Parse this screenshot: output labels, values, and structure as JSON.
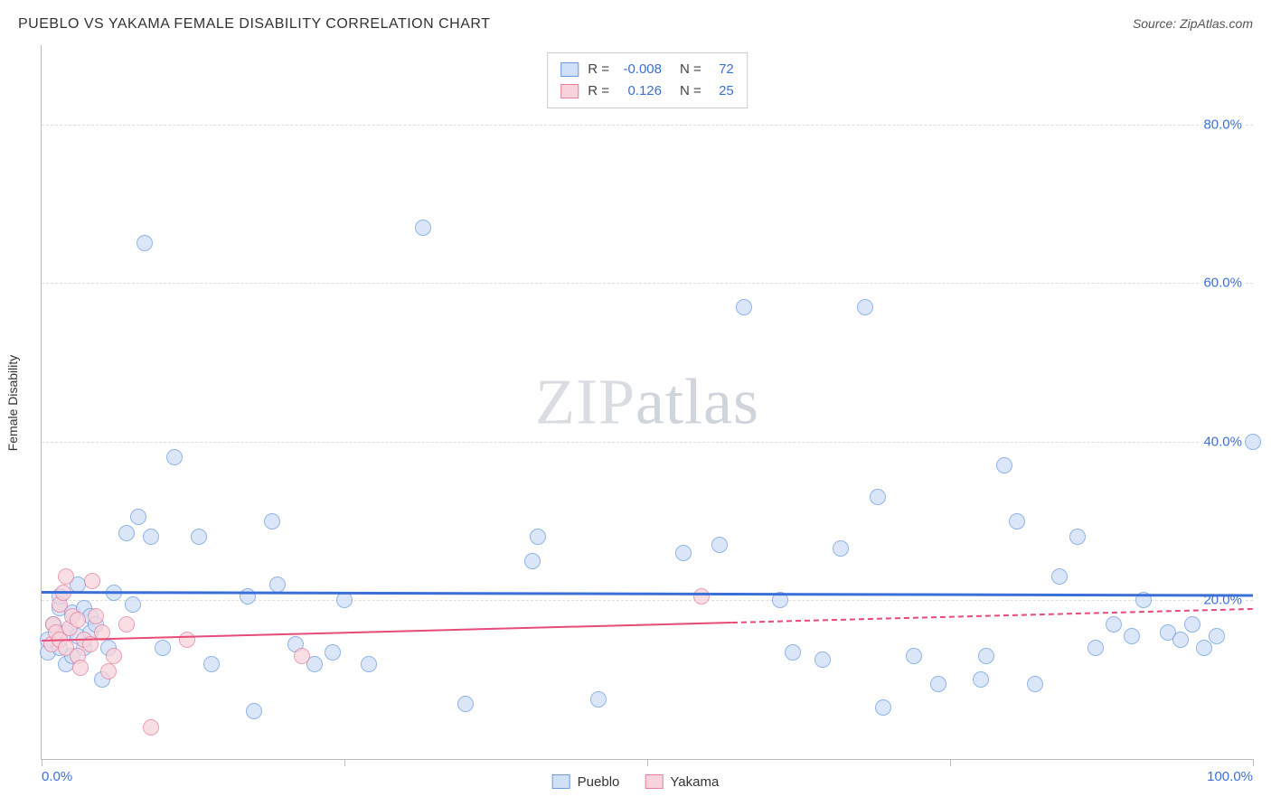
{
  "header": {
    "title": "PUEBLO VS YAKAMA FEMALE DISABILITY CORRELATION CHART",
    "source": "Source: ZipAtlas.com"
  },
  "watermark": {
    "bold": "ZIP",
    "rest": "atlas"
  },
  "chart": {
    "type": "scatter",
    "ylabel": "Female Disability",
    "background_color": "#ffffff",
    "grid_color": "#dddddd",
    "axis_color": "#bbbbbb",
    "tick_label_color": "#3b6fd8",
    "xlim": [
      0,
      100
    ],
    "ylim": [
      0,
      90
    ],
    "ytick_values": [
      20,
      40,
      60,
      80
    ],
    "ytick_labels": [
      "20.0%",
      "40.0%",
      "60.0%",
      "80.0%"
    ],
    "xtick_values": [
      0,
      50,
      100
    ],
    "xtick_minor": [
      25,
      75
    ],
    "xtick_labels": {
      "0": "0.0%",
      "100": "100.0%"
    },
    "marker_radius": 9,
    "marker_border_width": 1.2,
    "series": [
      {
        "name": "Pueblo",
        "fill": "#cfe0f7",
        "stroke": "#6a9be0",
        "fill_opacity": 0.75,
        "R": "-0.008",
        "N": "72",
        "trend": {
          "y_at_x0": 21.2,
          "y_at_x100": 20.8,
          "solid_until_x": 100,
          "color": "#3b6fd8",
          "width": 3
        },
        "points": [
          [
            0.5,
            13.5
          ],
          [
            0.5,
            15.0
          ],
          [
            1.0,
            17.0
          ],
          [
            1.5,
            14.0
          ],
          [
            1.5,
            19.0
          ],
          [
            1.5,
            20.5
          ],
          [
            2.0,
            12.0
          ],
          [
            2.0,
            16.0
          ],
          [
            2.5,
            13.0
          ],
          [
            2.5,
            18.5
          ],
          [
            3.0,
            15.5
          ],
          [
            3.0,
            22.0
          ],
          [
            3.5,
            14.0
          ],
          [
            3.5,
            19.0
          ],
          [
            4.0,
            16.0
          ],
          [
            4.0,
            18.0
          ],
          [
            4.5,
            17.0
          ],
          [
            5.0,
            10.0
          ],
          [
            5.5,
            14.0
          ],
          [
            6.0,
            21.0
          ],
          [
            7.0,
            28.5
          ],
          [
            8.0,
            30.5
          ],
          [
            8.5,
            65.0
          ],
          [
            9.0,
            28.0
          ],
          [
            10.0,
            14.0
          ],
          [
            11.0,
            38.0
          ],
          [
            13.0,
            28.0
          ],
          [
            14.0,
            12.0
          ],
          [
            17.0,
            20.5
          ],
          [
            17.5,
            6.0
          ],
          [
            19.0,
            30.0
          ],
          [
            19.5,
            22.0
          ],
          [
            21.0,
            14.5
          ],
          [
            22.5,
            12.0
          ],
          [
            24.0,
            13.5
          ],
          [
            25.0,
            20.0
          ],
          [
            27.0,
            12.0
          ],
          [
            31.5,
            67.0
          ],
          [
            35.0,
            7.0
          ],
          [
            40.5,
            25.0
          ],
          [
            41.0,
            28.0
          ],
          [
            46.0,
            7.5
          ],
          [
            53.0,
            26.0
          ],
          [
            56.0,
            27.0
          ],
          [
            58.0,
            57.0
          ],
          [
            61.0,
            20.0
          ],
          [
            62.0,
            13.5
          ],
          [
            64.5,
            12.5
          ],
          [
            66.0,
            26.5
          ],
          [
            68.0,
            57.0
          ],
          [
            69.0,
            33.0
          ],
          [
            69.5,
            6.5
          ],
          [
            72.0,
            13.0
          ],
          [
            74.0,
            9.5
          ],
          [
            77.5,
            10.0
          ],
          [
            78.0,
            13.0
          ],
          [
            79.5,
            37.0
          ],
          [
            80.5,
            30.0
          ],
          [
            82.0,
            9.5
          ],
          [
            84.0,
            23.0
          ],
          [
            85.5,
            28.0
          ],
          [
            87.0,
            14.0
          ],
          [
            88.5,
            17.0
          ],
          [
            90.0,
            15.5
          ],
          [
            91.0,
            20.0
          ],
          [
            93.0,
            16.0
          ],
          [
            94.0,
            15.0
          ],
          [
            95.0,
            17.0
          ],
          [
            96.0,
            14.0
          ],
          [
            97.0,
            15.5
          ],
          [
            100.0,
            40.0
          ],
          [
            7.5,
            19.5
          ]
        ]
      },
      {
        "name": "Yakama",
        "fill": "#f8d3dc",
        "stroke": "#e57f9b",
        "fill_opacity": 0.75,
        "R": "0.126",
        "N": "25",
        "trend": {
          "y_at_x0": 15.0,
          "y_at_x100": 19.0,
          "solid_until_x": 57,
          "color": "#e74b77",
          "width": 2.5
        },
        "points": [
          [
            0.8,
            14.5
          ],
          [
            1.0,
            17.0
          ],
          [
            1.2,
            16.0
          ],
          [
            1.5,
            15.0
          ],
          [
            1.5,
            19.5
          ],
          [
            1.8,
            21.0
          ],
          [
            2.0,
            14.0
          ],
          [
            2.0,
            23.0
          ],
          [
            2.3,
            16.5
          ],
          [
            2.5,
            18.0
          ],
          [
            3.0,
            17.5
          ],
          [
            3.0,
            13.0
          ],
          [
            3.2,
            11.5
          ],
          [
            3.5,
            15.0
          ],
          [
            4.0,
            14.5
          ],
          [
            4.2,
            22.5
          ],
          [
            4.5,
            18.0
          ],
          [
            5.0,
            16.0
          ],
          [
            5.5,
            11.0
          ],
          [
            6.0,
            13.0
          ],
          [
            7.0,
            17.0
          ],
          [
            9.0,
            4.0
          ],
          [
            12.0,
            15.0
          ],
          [
            21.5,
            13.0
          ],
          [
            54.5,
            20.5
          ]
        ]
      }
    ],
    "legend_top": {
      "rows": [
        {
          "swatch_fill": "#cfe0f7",
          "swatch_stroke": "#6a9be0",
          "R_label": "R =",
          "R_val": "-0.008",
          "N_label": "N =",
          "N_val": "72"
        },
        {
          "swatch_fill": "#f8d3dc",
          "swatch_stroke": "#e57f9b",
          "R_label": "R =",
          "R_val": "0.126",
          "N_label": "N =",
          "N_val": "25"
        }
      ]
    },
    "legend_bottom": [
      {
        "swatch_fill": "#cfe0f7",
        "swatch_stroke": "#6a9be0",
        "label": "Pueblo"
      },
      {
        "swatch_fill": "#f8d3dc",
        "swatch_stroke": "#e57f9b",
        "label": "Yakama"
      }
    ]
  }
}
